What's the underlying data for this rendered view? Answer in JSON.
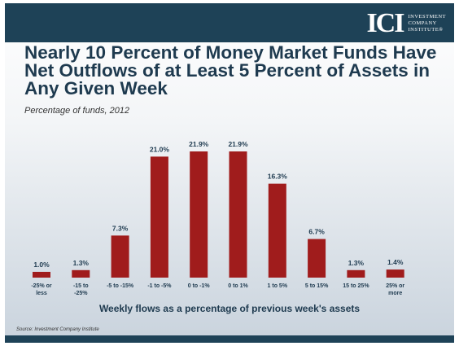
{
  "logo": {
    "mark": "ICI",
    "lines": [
      "INVESTMENT",
      "COMPANY",
      "INSTITUTE®"
    ]
  },
  "chart_data": {
    "type": "bar",
    "title": "Nearly 10 Percent of Money Market Funds Have Net Outflows of at Least 5 Percent of Assets in Any Given Week",
    "subtitle": "Percentage of funds, 2012",
    "xlabel": "Weekly flows as a percentage of previous week's assets",
    "ylabel": "",
    "categories": [
      [
        "-25% or",
        "less"
      ],
      [
        "-15 to",
        "-25%"
      ],
      [
        "-5 to -15%"
      ],
      [
        "-1 to -5%"
      ],
      [
        "0 to -1%"
      ],
      [
        "0 to 1%"
      ],
      [
        "1 to 5%"
      ],
      [
        "5 to 15%"
      ],
      [
        "15 to 25%"
      ],
      [
        "25% or",
        "more"
      ]
    ],
    "values": [
      1.0,
      1.3,
      7.3,
      21.0,
      21.9,
      21.9,
      16.3,
      6.7,
      1.3,
      1.4
    ],
    "value_labels": [
      "1.0%",
      "1.3%",
      "7.3%",
      "21.0%",
      "21.9%",
      "21.9%",
      "16.3%",
      "6.7%",
      "1.3%",
      "1.4%"
    ],
    "ylim": [
      0,
      21.9
    ],
    "grid": false,
    "legend": "none",
    "bar_color": "#a01c1c"
  },
  "source": "Source: Investment Company Institute"
}
